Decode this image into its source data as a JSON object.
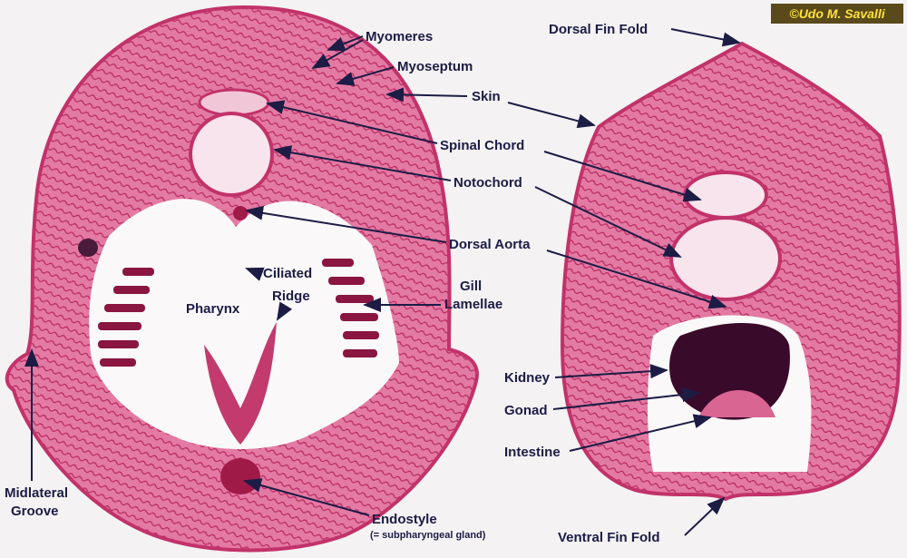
{
  "credit": "©Udo M. Savalli",
  "labels": {
    "myomeres": "Myomeres",
    "myoseptum": "Myoseptum",
    "skin": "Skin",
    "spinal_chord": "Spinal Chord",
    "notochord": "Notochord",
    "dorsal_aorta": "Dorsal Aorta",
    "ciliated_ridge": [
      "Ciliated",
      "Ridge"
    ],
    "pharynx": "Pharynx",
    "gill_lamellae": [
      "Gill",
      "Lamellae"
    ],
    "midlateral_groove": [
      "Midlateral",
      "Groove"
    ],
    "endostyle": "Endostyle",
    "endostyle_note": "(= subpharyngeal gland)",
    "dorsal_fin_fold": "Dorsal Fin Fold",
    "kidney": "Kidney",
    "gonad": "Gonad",
    "intestine": "Intestine",
    "ventral_fin_fold": "Ventral Fin Fold"
  }
}
